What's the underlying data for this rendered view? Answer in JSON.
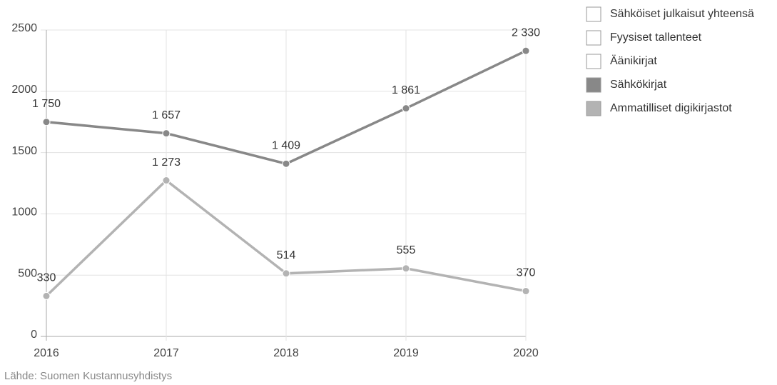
{
  "chart_data": {
    "type": "line",
    "x": [
      2016,
      2017,
      2018,
      2019,
      2020
    ],
    "xlim": [
      2016,
      2020
    ],
    "xticks": [
      2016,
      2017,
      2018,
      2019,
      2020
    ],
    "ylim": [
      0,
      2500
    ],
    "yticks": [
      0,
      500,
      1000,
      1500,
      2000,
      2500
    ],
    "grid": true,
    "legend": "right",
    "series": [
      {
        "name": "Sähköiset julkaisut yhteensä",
        "color": "#ffffff",
        "values": [
          null,
          null,
          null,
          null,
          null
        ]
      },
      {
        "name": "Fyysiset tallenteet",
        "color": "#ffffff",
        "values": [
          null,
          null,
          null,
          null,
          null
        ]
      },
      {
        "name": "Äänikirjat",
        "color": "#ffffff",
        "values": [
          null,
          null,
          null,
          null,
          null
        ]
      },
      {
        "name": "Sähkökirjat",
        "color": "#888888",
        "values": [
          1750,
          1657,
          1409,
          1861,
          2330
        ],
        "value_labels": [
          "1 750",
          "1 657",
          "1 409",
          "1 861",
          "2 330"
        ]
      },
      {
        "name": "Ammatilliset digikirjastot",
        "color": "#b3b3b3",
        "values": [
          330,
          1273,
          514,
          555,
          370
        ],
        "value_labels": [
          "330",
          "1 273",
          "514",
          "555",
          "370"
        ]
      }
    ],
    "source": "Lähde: Suomen Kustannusyhdistys"
  }
}
